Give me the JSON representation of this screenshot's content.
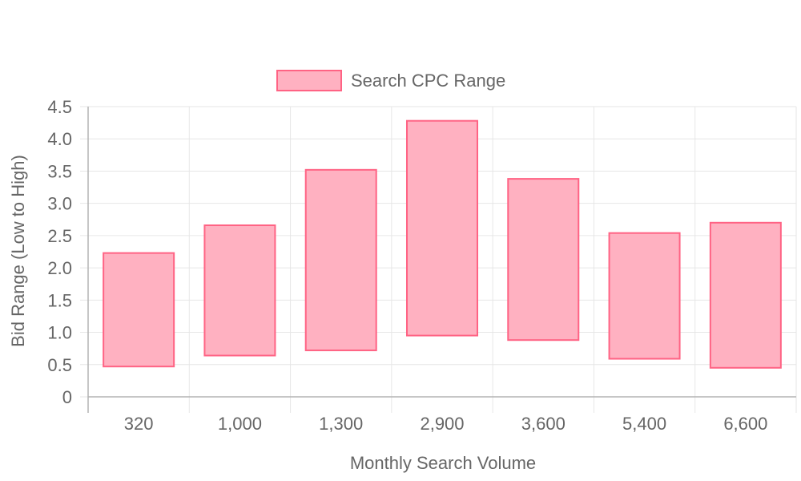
{
  "chart_data": {
    "type": "bar",
    "subtype": "floating-range",
    "title": "",
    "xlabel": "Monthly Search Volume",
    "ylabel": "Bid Range (Low to High)",
    "categories": [
      "320",
      "1,000",
      "1,300",
      "2,900",
      "3,600",
      "5,400",
      "6,600"
    ],
    "series": [
      {
        "name": "Search CPC Range",
        "ranges": [
          [
            0.47,
            2.23
          ],
          [
            0.64,
            2.66
          ],
          [
            0.72,
            3.52
          ],
          [
            0.95,
            4.28
          ],
          [
            0.88,
            3.38
          ],
          [
            0.59,
            2.54
          ],
          [
            0.45,
            2.7
          ]
        ]
      }
    ],
    "ylim": [
      0,
      4.5
    ],
    "yticks": [
      "0",
      "0.5",
      "1.0",
      "1.5",
      "2.0",
      "2.5",
      "3.0",
      "3.5",
      "4.0",
      "4.5"
    ],
    "grid": true,
    "legend_position": "top",
    "colors": {
      "bar_fill": "#ffb1c1",
      "bar_border": "#ff6384",
      "grid": "#e6e6e6",
      "axis": "#b3b3b3",
      "text": "#666666"
    }
  }
}
